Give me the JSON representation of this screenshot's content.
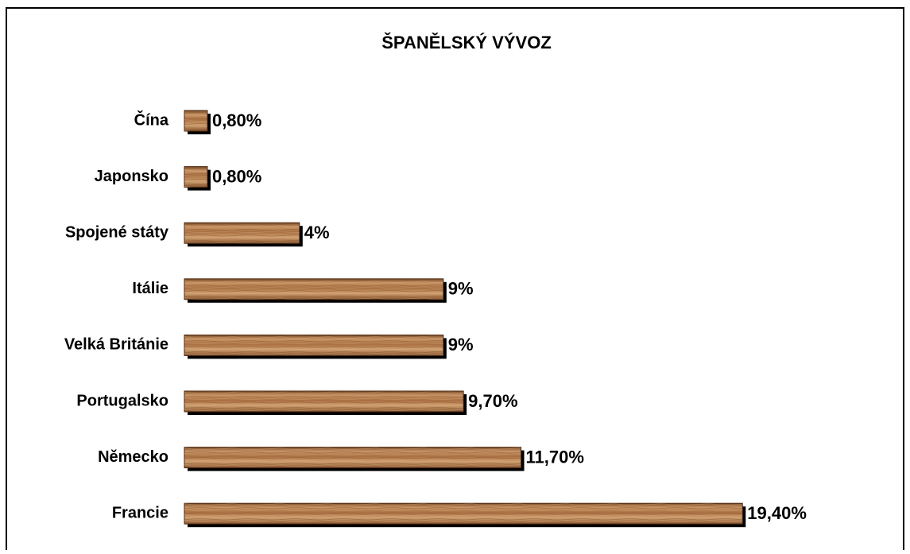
{
  "chart_data": {
    "type": "bar",
    "orientation": "horizontal",
    "title": "ŠPANĚLSKÝ VÝVOZ",
    "categories": [
      "Čína",
      "Japonsko",
      "Spojené státy",
      "Itálie",
      "Velká Británie",
      "Portugalsko",
      "Německo",
      "Francie"
    ],
    "values": [
      0.8,
      0.8,
      4,
      9,
      9,
      9.7,
      11.7,
      19.4
    ],
    "value_labels": [
      "0,80%",
      "0,80%",
      "4%",
      "9%",
      "9%",
      "9,70%",
      "11,70%",
      "19,40%"
    ],
    "color": "#b57c4c"
  }
}
